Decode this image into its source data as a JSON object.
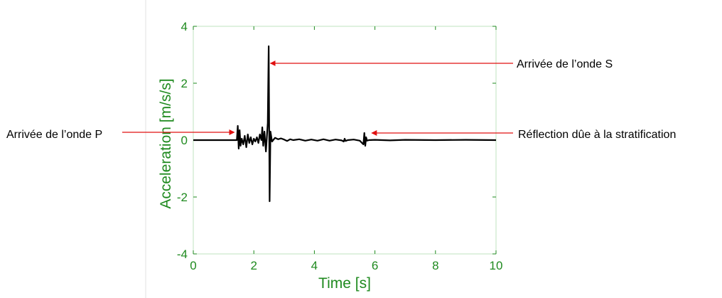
{
  "chart_data": {
    "type": "line",
    "title": "",
    "xlabel": "Time [s]",
    "ylabel": "Acceleration [m/s/s]",
    "xlim": [
      0,
      10
    ],
    "ylim": [
      -4,
      4
    ],
    "xticks": [
      0,
      2,
      4,
      6,
      8,
      10
    ],
    "yticks": [
      -4,
      -2,
      0,
      2,
      4
    ],
    "grid": false,
    "axis_color": "#1f8a1f",
    "line_color": "#000000",
    "arrow_color": "#e01010",
    "series": [
      {
        "x": [
          0,
          1.44,
          1.47,
          1.5,
          1.53,
          1.56,
          1.6,
          1.65,
          1.7,
          1.75,
          1.8,
          1.85,
          1.9,
          1.95,
          2.0,
          2.05,
          2.1,
          2.15,
          2.2,
          2.25,
          2.28,
          2.31,
          2.35,
          2.4,
          2.43,
          2.46,
          2.49,
          2.52,
          2.55,
          2.6,
          2.7,
          2.8,
          2.9,
          3.0,
          3.1,
          3.2,
          3.3,
          3.5,
          3.7,
          3.9,
          4.1,
          4.3,
          4.5,
          4.7,
          4.9,
          4.97,
          5.0,
          5.03,
          5.1,
          5.3,
          5.5,
          5.62,
          5.65,
          5.68,
          5.71,
          5.74,
          5.8,
          6.0,
          6.5,
          7.0,
          8.0,
          9.0,
          10.0
        ],
        "y": [
          0,
          0,
          0.5,
          -0.3,
          0.35,
          -0.2,
          0.05,
          -0.15,
          0.15,
          -0.25,
          0.2,
          -0.1,
          0.1,
          -0.15,
          0.05,
          -0.05,
          0.1,
          -0.1,
          0.2,
          0.0,
          0.45,
          -0.2,
          0.3,
          -0.4,
          0.1,
          0.6,
          3.3,
          -2.15,
          0.3,
          -0.05,
          0.08,
          0.03,
          0.06,
          0.02,
          -0.03,
          0.03,
          0.0,
          0.03,
          -0.02,
          0.02,
          -0.02,
          0.03,
          -0.02,
          0.02,
          -0.01,
          -0.05,
          0.05,
          -0.03,
          0.0,
          0.02,
          -0.02,
          -0.15,
          0.25,
          -0.2,
          0.1,
          -0.02,
          0.0,
          0.01,
          -0.01,
          0.01,
          0.0,
          0.01,
          0.0
        ]
      }
    ],
    "annotations": [
      {
        "text": "Arrivée de l’onde S",
        "arrow_to": [
          2.55,
          2.7
        ]
      },
      {
        "text": "Arrivée de l’onde P",
        "arrow_to": [
          1.35,
          0.25
        ]
      },
      {
        "text": "Réflection dûe à la stratification",
        "arrow_to": [
          5.9,
          0.25
        ]
      }
    ]
  }
}
